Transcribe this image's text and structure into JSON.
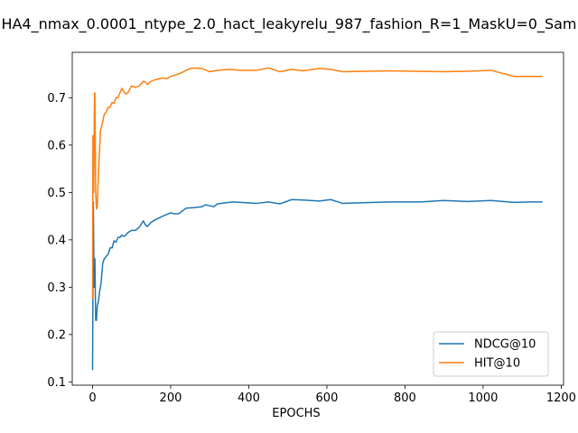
{
  "chart_data": {
    "type": "line",
    "title": "HA4_nmax_0.0001_ntype_2.0_hact_leakyrelu_987_fashion_R=1_MaskU=0_Sam",
    "xlabel": "EPOCHS",
    "ylabel": "",
    "xlim": [
      -52,
      1206
    ],
    "ylim": [
      0.093,
      0.796
    ],
    "xticks": [
      0,
      200,
      400,
      600,
      800,
      1000,
      1200
    ],
    "yticks": [
      0.1,
      0.2,
      0.3,
      0.4,
      0.5,
      0.6,
      0.7
    ],
    "grid": false,
    "legend_position": "lower-right",
    "series": [
      {
        "name": "NDCG@10",
        "color": "#1f77b4",
        "x": [
          0,
          2,
          4,
          6,
          8,
          10,
          12,
          15,
          18,
          22,
          26,
          30,
          35,
          40,
          45,
          50,
          55,
          60,
          65,
          70,
          75,
          80,
          85,
          90,
          100,
          110,
          120,
          130,
          135,
          140,
          150,
          160,
          180,
          200,
          210,
          220,
          240,
          260,
          280,
          290,
          300,
          310,
          320,
          340,
          360,
          380,
          420,
          450,
          480,
          510,
          540,
          580,
          610,
          640,
          680,
          720,
          760,
          800,
          840,
          900,
          960,
          1020,
          1080,
          1120,
          1152
        ],
        "y": [
          0.125,
          0.48,
          0.3,
          0.36,
          0.23,
          0.23,
          0.26,
          0.27,
          0.29,
          0.31,
          0.35,
          0.36,
          0.365,
          0.37,
          0.383,
          0.383,
          0.398,
          0.395,
          0.405,
          0.405,
          0.41,
          0.407,
          0.41,
          0.415,
          0.42,
          0.42,
          0.427,
          0.44,
          0.432,
          0.428,
          0.437,
          0.442,
          0.45,
          0.457,
          0.455,
          0.455,
          0.467,
          0.468,
          0.47,
          0.474,
          0.472,
          0.47,
          0.476,
          0.478,
          0.48,
          0.479,
          0.477,
          0.48,
          0.476,
          0.485,
          0.484,
          0.482,
          0.485,
          0.477,
          0.478,
          0.479,
          0.48,
          0.48,
          0.48,
          0.483,
          0.481,
          0.483,
          0.479,
          0.48,
          0.48
        ]
      },
      {
        "name": "HIT@10",
        "color": "#ff7f0e",
        "x": [
          0,
          1,
          3,
          5,
          6,
          8,
          10,
          12,
          15,
          18,
          20,
          25,
          30,
          35,
          40,
          45,
          50,
          55,
          60,
          65,
          70,
          75,
          80,
          85,
          90,
          100,
          110,
          120,
          130,
          135,
          140,
          150,
          160,
          170,
          180,
          190,
          200,
          210,
          220,
          240,
          250,
          260,
          280,
          300,
          320,
          350,
          380,
          420,
          450,
          480,
          510,
          540,
          580,
          610,
          640,
          700,
          760,
          820,
          900,
          960,
          1020,
          1080,
          1152
        ],
        "y": [
          0.275,
          0.62,
          0.5,
          0.71,
          0.71,
          0.5,
          0.465,
          0.47,
          0.54,
          0.59,
          0.63,
          0.645,
          0.665,
          0.67,
          0.68,
          0.68,
          0.69,
          0.688,
          0.7,
          0.7,
          0.71,
          0.72,
          0.713,
          0.708,
          0.71,
          0.725,
          0.722,
          0.725,
          0.735,
          0.733,
          0.728,
          0.735,
          0.738,
          0.74,
          0.742,
          0.74,
          0.745,
          0.748,
          0.75,
          0.758,
          0.762,
          0.763,
          0.762,
          0.755,
          0.758,
          0.76,
          0.758,
          0.758,
          0.763,
          0.755,
          0.76,
          0.757,
          0.762,
          0.76,
          0.755,
          0.756,
          0.757,
          0.756,
          0.755,
          0.756,
          0.758,
          0.745,
          0.745
        ]
      }
    ]
  }
}
